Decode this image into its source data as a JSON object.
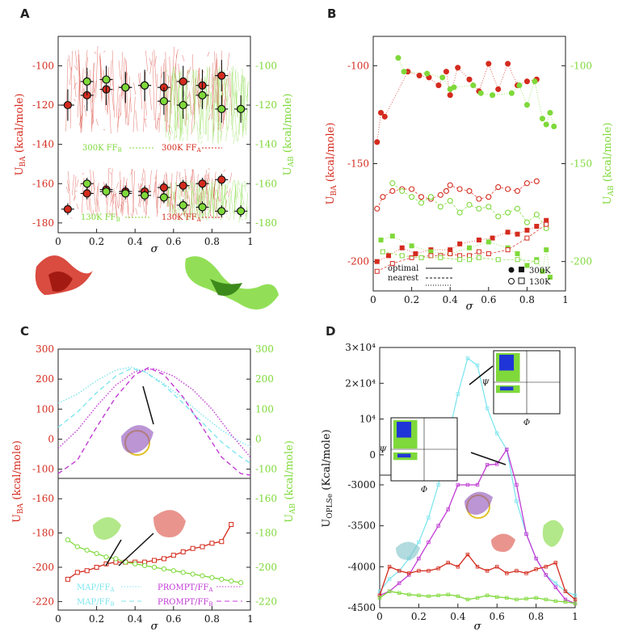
{
  "figure": {
    "colors": {
      "red": "#d42b1e",
      "green": "#7fd93a",
      "magenta": "#c13bd4",
      "cyan": "#7fe6ef",
      "blue": "#2035d8",
      "black": "#111111"
    }
  },
  "chart_data": [
    {
      "panel": "A",
      "type": "scatter",
      "title": "",
      "xlabel": "σ",
      "ylabel_left": "U_BA (kcal/mole)",
      "ylabel_right": "U_AB (kcal/mole)",
      "xlim": [
        0,
        1
      ],
      "ylim_left": [
        -185,
        -85
      ],
      "ylim_right": [
        -185,
        -85
      ],
      "x_ticks": [
        "0",
        "0.2",
        "0.4",
        "0.6",
        "0.8",
        "1"
      ],
      "y_ticks_left": [
        "-100",
        "-120",
        "-140",
        "-160",
        "-180"
      ],
      "y_ticks_right": [
        "-100",
        "-120",
        "-140",
        "-160",
        "-180"
      ],
      "series": [
        {
          "name": "300K FF_A",
          "color": "red",
          "x": [
            0.05,
            0.15,
            0.25,
            0.35,
            0.45,
            0.55,
            0.65,
            0.75,
            0.85
          ],
          "y": [
            -120,
            -115,
            -112,
            -111,
            -110,
            -111,
            -108,
            -110,
            -105
          ],
          "yerr": 8
        },
        {
          "name": "300K FF_B",
          "color": "green",
          "x": [
            0.15,
            0.25,
            0.35,
            0.45,
            0.55,
            0.65,
            0.75,
            0.85,
            0.95
          ],
          "y": [
            -108,
            -107,
            -111,
            -110,
            -118,
            -120,
            -115,
            -122,
            -122
          ],
          "yerr": 7
        },
        {
          "name": "130K FF_A",
          "color": "red",
          "x": [
            0.05,
            0.15,
            0.25,
            0.35,
            0.45,
            0.55,
            0.65,
            0.75,
            0.85
          ],
          "y": [
            -173,
            -165,
            -163,
            -164,
            -164,
            -162,
            -161,
            -160,
            -158
          ],
          "yerr": 3
        },
        {
          "name": "130K FF_B",
          "color": "green",
          "x": [
            0.15,
            0.25,
            0.35,
            0.45,
            0.55,
            0.65,
            0.75,
            0.85,
            0.95
          ],
          "y": [
            -160,
            -164,
            -165,
            -166,
            -167,
            -171,
            -172,
            -174,
            -174
          ],
          "yerr": 3
        }
      ],
      "legend": [
        "300K FF_B",
        "300K FF_A",
        "130K FF_B",
        "130K FF_A"
      ]
    },
    {
      "panel": "B",
      "type": "scatter",
      "xlabel": "σ",
      "ylabel_left": "U_BA (kcal/mole)",
      "ylabel_right": "U_AB (kcal/mole)",
      "xlim": [
        0,
        1
      ],
      "ylim_left": [
        -215,
        -85
      ],
      "ylim_right": [
        -215,
        -85
      ],
      "x_ticks": [
        "0",
        "0.2",
        "0.4",
        "0.6",
        "0.8",
        "1"
      ],
      "y_ticks_left": [
        "-100",
        "-150",
        "-200"
      ],
      "y_ticks_right": [
        "-100",
        "-150",
        "-200"
      ],
      "series": [
        {
          "name": "300K optimal red",
          "color": "red",
          "marker": "circle-filled",
          "x": [
            0.02,
            0.04,
            0.06,
            0.18,
            0.24,
            0.29,
            0.34,
            0.38,
            0.4,
            0.44,
            0.5,
            0.55,
            0.6,
            0.65,
            0.7,
            0.75,
            0.8,
            0.85
          ],
          "y": [
            -139,
            -124,
            -126,
            -103,
            -105,
            -106,
            -110,
            -103,
            -115,
            -101,
            -107,
            -113,
            -99,
            -112,
            -99,
            -110,
            -108,
            -107
          ]
        },
        {
          "name": "300K optimal green",
          "color": "green",
          "marker": "circle-filled",
          "x": [
            0.13,
            0.16,
            0.28,
            0.36,
            0.4,
            0.42,
            0.52,
            0.56,
            0.62,
            0.72,
            0.76,
            0.8,
            0.84,
            0.88,
            0.9,
            0.92,
            0.94
          ],
          "y": [
            -96,
            -103,
            -104,
            -106,
            -112,
            -111,
            -110,
            -114,
            -115,
            -114,
            -110,
            -120,
            -108,
            -127,
            -130,
            -124,
            -131
          ]
        },
        {
          "name": "130K nearest red",
          "color": "red",
          "marker": "circle-open",
          "x": [
            0.02,
            0.05,
            0.1,
            0.15,
            0.2,
            0.25,
            0.3,
            0.35,
            0.38,
            0.4,
            0.45,
            0.5,
            0.55,
            0.6,
            0.65,
            0.7,
            0.75,
            0.8,
            0.85
          ],
          "y": [
            -173,
            -167,
            -164,
            -163,
            -163,
            -167,
            -168,
            -166,
            -164,
            -161,
            -163,
            -164,
            -168,
            -167,
            -162,
            -163,
            -164,
            -160,
            -159
          ]
        },
        {
          "name": "130K nearest green",
          "color": "green",
          "marker": "circle-open",
          "x": [
            0.1,
            0.15,
            0.2,
            0.25,
            0.3,
            0.35,
            0.4,
            0.45,
            0.5,
            0.55,
            0.6,
            0.65,
            0.7,
            0.75,
            0.8,
            0.85,
            0.9
          ],
          "y": [
            -160,
            -164,
            -167,
            -170,
            -167,
            -172,
            -169,
            -175,
            -171,
            -173,
            -172,
            -177,
            -175,
            -173,
            -180,
            -176,
            -183
          ]
        },
        {
          "name": "300K square red",
          "color": "red",
          "marker": "square-filled",
          "x": [
            0.02,
            0.08,
            0.15,
            0.22,
            0.3,
            0.4,
            0.45,
            0.55,
            0.62,
            0.7,
            0.75,
            0.8,
            0.85,
            0.9
          ],
          "y": [
            -200,
            -197,
            -193,
            -196,
            -194,
            -194,
            -191,
            -189,
            -188,
            -185,
            -186,
            -184,
            -182,
            -179
          ]
        },
        {
          "name": "300K square green",
          "color": "green",
          "marker": "square-filled",
          "x": [
            0.04,
            0.1,
            0.2,
            0.3,
            0.4,
            0.5,
            0.6,
            0.7,
            0.75,
            0.8,
            0.85,
            0.88,
            0.9,
            0.92
          ],
          "y": [
            -189,
            -187,
            -192,
            -195,
            -196,
            -193,
            -190,
            -193,
            -196,
            -202,
            -199,
            -205,
            -194,
            -208
          ]
        },
        {
          "name": "130K square red",
          "color": "red",
          "marker": "square-open",
          "x": [
            0.02,
            0.1,
            0.2,
            0.3,
            0.35,
            0.4,
            0.45,
            0.5,
            0.55,
            0.6,
            0.7,
            0.8,
            0.9
          ],
          "y": [
            -205,
            -201,
            -198,
            -197,
            -197,
            -196,
            -197,
            -197,
            -195,
            -196,
            -194,
            -188,
            -181
          ]
        },
        {
          "name": "130K square green",
          "color": "green",
          "marker": "square-open",
          "x": [
            0.05,
            0.15,
            0.25,
            0.35,
            0.45,
            0.5,
            0.55,
            0.65,
            0.75,
            0.85
          ],
          "y": [
            -195,
            -197,
            -198,
            -198,
            -199,
            -199,
            -198,
            -199,
            -199,
            -200
          ]
        }
      ],
      "legend": {
        "optimal": "optimal",
        "nearest": "nearest",
        "t300": "300K",
        "t130": "130K"
      }
    },
    {
      "panel": "C",
      "type": "line",
      "xlabel": "σ",
      "ylabel_left": "U_BA (kcal/mole)",
      "ylabel_right": "U_AB (kcal/mole)",
      "xlim": [
        0,
        1
      ],
      "upper_ylim": [
        -120,
        300
      ],
      "lower_ylim": [
        -225,
        -150
      ],
      "x_ticks": [
        "0",
        "0.2",
        "0.4",
        "0.6",
        "0.8",
        "1"
      ],
      "y_ticks_upper": [
        "300",
        "200",
        "100",
        "0",
        "-100"
      ],
      "y_ticks_lower": [
        "-160",
        "-180",
        "-200",
        "-220"
      ],
      "y_ticks_right_upper": [
        "300",
        "200",
        "100",
        "0",
        "-100"
      ],
      "y_ticks_right_lower": [
        "-160",
        "-180",
        "-200",
        "-220"
      ],
      "series_upper": [
        {
          "name": "MAP/FF_A",
          "color": "cyan",
          "style": "dotted",
          "x": [
            0,
            0.1,
            0.2,
            0.3,
            0.38,
            0.45,
            0.55,
            0.65,
            0.75,
            0.85,
            0.95,
            1
          ],
          "y": [
            120,
            150,
            195,
            230,
            240,
            225,
            185,
            135,
            80,
            30,
            -10,
            -25
          ]
        },
        {
          "name": "MAP/FF_B",
          "color": "cyan",
          "style": "dashed",
          "x": [
            0,
            0.1,
            0.2,
            0.3,
            0.38,
            0.45,
            0.55,
            0.65,
            0.75,
            0.85,
            0.95,
            1
          ],
          "y": [
            40,
            90,
            155,
            210,
            235,
            225,
            180,
            120,
            55,
            -10,
            -60,
            -80
          ]
        },
        {
          "name": "PROMPT/FF_A",
          "color": "magenta",
          "style": "dotted",
          "x": [
            0,
            0.1,
            0.2,
            0.3,
            0.4,
            0.5,
            0.6,
            0.7,
            0.8,
            0.9,
            1
          ],
          "y": [
            -30,
            30,
            110,
            180,
            225,
            235,
            210,
            165,
            100,
            15,
            -60
          ]
        },
        {
          "name": "PROMPT/FF_B",
          "color": "magenta",
          "style": "dashed",
          "x": [
            0,
            0.1,
            0.2,
            0.3,
            0.4,
            0.47,
            0.55,
            0.65,
            0.75,
            0.85,
            0.95,
            1
          ],
          "y": [
            -115,
            -70,
            40,
            140,
            215,
            238,
            215,
            140,
            40,
            -60,
            -115,
            -120
          ]
        }
      ],
      "series_lower": [
        {
          "name": "red path",
          "color": "red",
          "marker": "square-open",
          "x": [
            0.05,
            0.1,
            0.15,
            0.2,
            0.25,
            0.3,
            0.35,
            0.4,
            0.45,
            0.5,
            0.55,
            0.6,
            0.65,
            0.7,
            0.75,
            0.8,
            0.85,
            0.9
          ],
          "y": [
            -207,
            -203,
            -202,
            -200,
            -198,
            -197,
            -197,
            -197,
            -197,
            -196,
            -195,
            -193,
            -191,
            -189,
            -188,
            -186,
            -185,
            -175
          ]
        },
        {
          "name": "green path",
          "color": "green",
          "marker": "circle-open",
          "x": [
            0.05,
            0.1,
            0.15,
            0.2,
            0.25,
            0.3,
            0.35,
            0.4,
            0.45,
            0.5,
            0.55,
            0.6,
            0.65,
            0.7,
            0.75,
            0.8,
            0.85,
            0.9,
            0.95
          ],
          "y": [
            -184,
            -188,
            -190,
            -192,
            -194,
            -195,
            -197,
            -198,
            -199,
            -200,
            -201,
            -202,
            -203,
            -204,
            -205,
            -206,
            -207,
            -208,
            -209
          ]
        }
      ],
      "legend": [
        "MAP/FF_A",
        "MAP/FF_B",
        "PROMPT/FF_A",
        "PROMPT/FF_B"
      ]
    },
    {
      "panel": "D",
      "type": "line",
      "xlabel": "σ",
      "ylabel_left": "U_OPLSe (Kcal/mole)",
      "xlim": [
        0,
        1
      ],
      "upper_ylim": [
        -5000,
        30000
      ],
      "lower_ylim": [
        -4500,
        -3000
      ],
      "x_ticks": [
        "0",
        "0.2",
        "0.4",
        "0.6",
        "0.8",
        "1"
      ],
      "y_ticks_upper": [
        "3×10⁴",
        "2×10⁴",
        "10⁴",
        "0"
      ],
      "y_ticks_lower": [
        "-3000",
        "-3500",
        "-4000",
        "-4500"
      ],
      "inset_axes": {
        "phi": "Φ",
        "psi": "Ψ"
      },
      "series": [
        {
          "name": "cyan",
          "color": "cyan",
          "x": [
            0,
            0.05,
            0.1,
            0.15,
            0.2,
            0.25,
            0.3,
            0.35,
            0.4,
            0.45,
            0.5,
            0.55,
            0.6,
            0.65,
            0.7,
            0.75,
            0.8,
            0.85,
            0.9,
            0.95,
            1
          ],
          "y": [
            -4300,
            -4150,
            -4050,
            -3900,
            -3700,
            -3400,
            -3000,
            5000,
            17000,
            27000,
            25000,
            13000,
            6000,
            1500,
            -3200,
            -3600,
            -3900,
            -4100,
            -4200,
            -4300,
            -4350
          ]
        },
        {
          "name": "magenta",
          "color": "magenta",
          "x": [
            0,
            0.05,
            0.1,
            0.15,
            0.2,
            0.25,
            0.3,
            0.35,
            0.4,
            0.45,
            0.5,
            0.55,
            0.6,
            0.65,
            0.7,
            0.75,
            0.8,
            0.85,
            0.9,
            0.95,
            1
          ],
          "y": [
            -4350,
            -4300,
            -4200,
            -4100,
            -3900,
            -3700,
            -3500,
            -3300,
            -3000,
            -3000,
            -3000,
            -2800,
            -2600,
            1500,
            -3000,
            -3600,
            -3900,
            -4100,
            -4250,
            -4400,
            -4450
          ]
        },
        {
          "name": "red",
          "color": "red",
          "x": [
            0,
            0.05,
            0.1,
            0.15,
            0.2,
            0.25,
            0.3,
            0.35,
            0.4,
            0.45,
            0.5,
            0.55,
            0.6,
            0.65,
            0.7,
            0.75,
            0.8,
            0.85,
            0.9,
            0.95,
            1
          ],
          "y": [
            -4350,
            -4000,
            -4050,
            -4080,
            -4050,
            -4050,
            -4020,
            -3950,
            -4000,
            -3850,
            -4000,
            -4050,
            -4000,
            -4080,
            -4050,
            -4080,
            -4030,
            -4000,
            -3950,
            -4300,
            -4400
          ]
        },
        {
          "name": "green",
          "color": "green",
          "x": [
            0,
            0.05,
            0.1,
            0.15,
            0.2,
            0.25,
            0.3,
            0.35,
            0.4,
            0.45,
            0.5,
            0.55,
            0.6,
            0.65,
            0.7,
            0.75,
            0.8,
            0.85,
            0.9,
            0.95,
            1
          ],
          "y": [
            -4380,
            -4300,
            -4320,
            -4340,
            -4350,
            -4360,
            -4350,
            -4340,
            -4360,
            -4400,
            -4380,
            -4350,
            -4370,
            -4380,
            -4400,
            -4390,
            -4380,
            -4400,
            -4420,
            -4430,
            -4450
          ]
        }
      ]
    }
  ],
  "labels": {
    "A": "A",
    "B": "B",
    "C": "C",
    "D": "D",
    "sigma": "σ",
    "uba": "U",
    "uba_sub": "BA",
    "uab": "U",
    "uab_sub": "AB",
    "unit": "(kcal/mole)",
    "uopls": "U",
    "uopls_sub": "OPLSe",
    "unit_d": "(Kcal/mole)",
    "legendA": {
      "t300b": "300K FF",
      "t300b_sub": "B",
      "t300a": "300K FF",
      "t300a_sub": "A",
      "t130b": "130K FF",
      "t130b_sub": "B",
      "t130a": "130K FF",
      "t130a_sub": "A"
    },
    "legendC": {
      "mapa": "MAP/FF",
      "mapa_sub": "A",
      "mapb": "MAP/FF",
      "mapb_sub": "B",
      "prompta": "PROMPT/FF",
      "prompta_sub": "A",
      "promptb": "PROMPT/FF",
      "promptb_sub": "B"
    }
  }
}
